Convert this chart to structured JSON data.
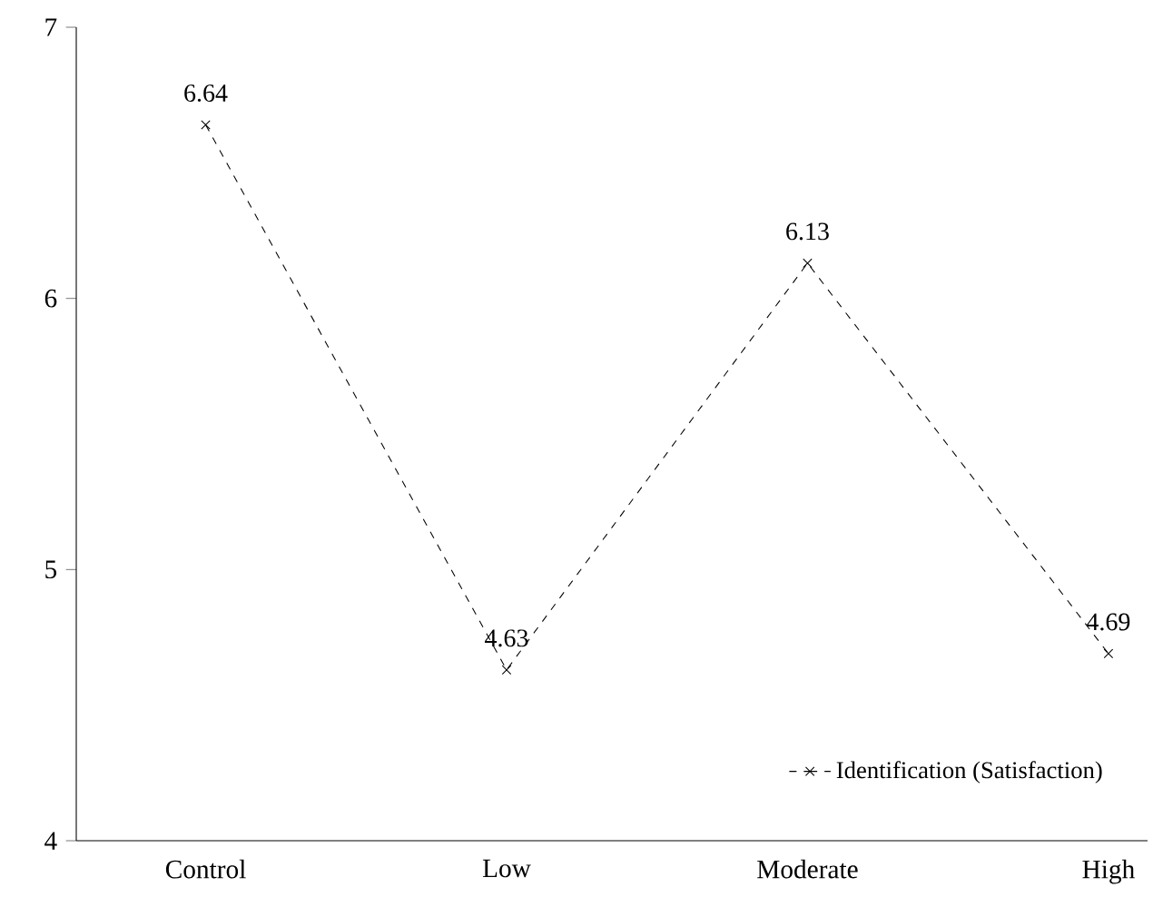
{
  "chart_data": {
    "type": "line",
    "categories": [
      "Control",
      "Low",
      "Moderate",
      "High"
    ],
    "series": [
      {
        "name": "Identification (Satisfaction)",
        "color": "#000000",
        "values": [
          6.64,
          4.63,
          6.13,
          4.69
        ]
      }
    ],
    "ylim": [
      4,
      7
    ],
    "yticks": [
      4,
      5,
      6,
      7
    ],
    "data_labels": true,
    "marker": "cross",
    "line_style": "dashed",
    "legend": "bottom right",
    "grid": false
  }
}
